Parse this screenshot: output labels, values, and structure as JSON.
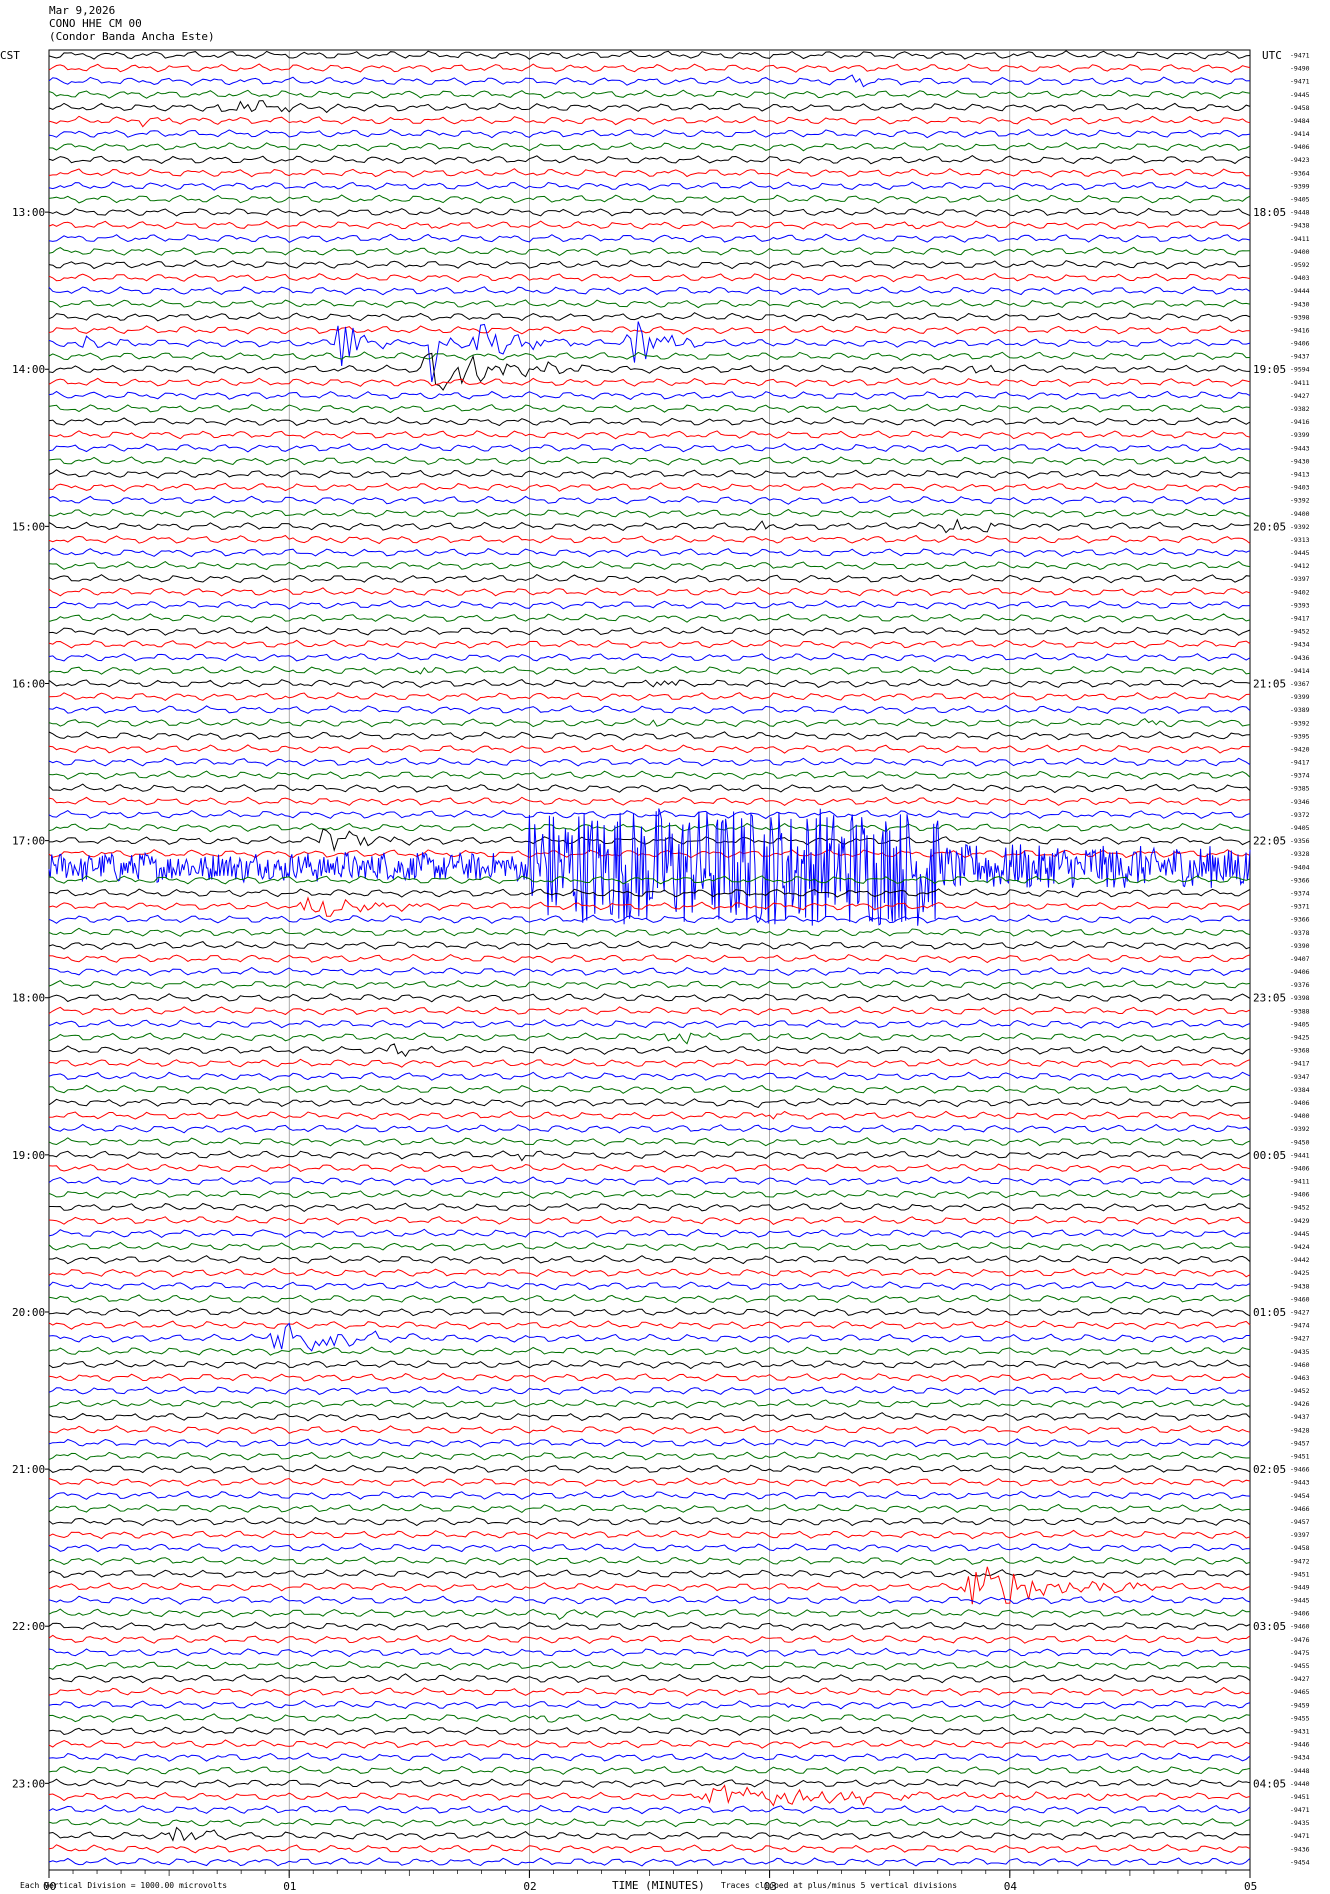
{
  "header": {
    "date": "Mar 9,2026",
    "station": "CONO HHE CM 00",
    "site": "(Condor Banda Ancha Este)"
  },
  "left_tz": "CST",
  "right_tz": "UTC",
  "footer": {
    "division_note": "Each Vertical Division = 1000.00 microvolts",
    "xlabel": "TIME (MINUTES)",
    "clip_note": "Traces clipped at plus/minus 5 vertical divisions"
  },
  "colors": {
    "cycle": [
      "#000000",
      "#ff0000",
      "#0000ff",
      "#007000"
    ]
  },
  "chart_data": {
    "type": "line",
    "title": "CONO HHE CM 00",
    "xlabel": "TIME (MINUTES)",
    "ylabel": "",
    "xlim": [
      0,
      5
    ],
    "x_ticks": [
      "00",
      "01",
      "02",
      "03",
      "04",
      "05"
    ],
    "grid": true,
    "left_hour_labels": [
      {
        "trace": 12,
        "label": "13:00"
      },
      {
        "trace": 24,
        "label": "14:00"
      },
      {
        "trace": 36,
        "label": "15:00"
      },
      {
        "trace": 48,
        "label": "16:00"
      },
      {
        "trace": 60,
        "label": "17:00"
      },
      {
        "trace": 72,
        "label": "18:00"
      },
      {
        "trace": 84,
        "label": "19:00"
      },
      {
        "trace": 96,
        "label": "20:00"
      },
      {
        "trace": 108,
        "label": "21:00"
      },
      {
        "trace": 120,
        "label": "22:00"
      },
      {
        "trace": 132,
        "label": "23:00"
      }
    ],
    "right_hour_labels": [
      {
        "trace": 12,
        "label": "18:05"
      },
      {
        "trace": 24,
        "label": "19:05"
      },
      {
        "trace": 36,
        "label": "20:05"
      },
      {
        "trace": 48,
        "label": "21:05"
      },
      {
        "trace": 60,
        "label": "22:05"
      },
      {
        "trace": 72,
        "label": "23:05"
      },
      {
        "trace": 84,
        "label": "00:05"
      },
      {
        "trace": 96,
        "label": "01:05"
      },
      {
        "trace": 108,
        "label": "02:05"
      },
      {
        "trace": 120,
        "label": "03:05"
      },
      {
        "trace": 132,
        "label": "04:05"
      }
    ],
    "trace_offsets": [
      "-9471",
      "-9490",
      "-9471",
      "-9445",
      "-9458",
      "-9484",
      "-9414",
      "-9406",
      "-9423",
      "-9364",
      "-9399",
      "-9405",
      "-9448",
      "-9438",
      "-9411",
      "-9400",
      "-9592",
      "-9403",
      "-9444",
      "-9430",
      "-9398",
      "-9416",
      "-9406",
      "-9437",
      "-9594",
      "-9411",
      "-9427",
      "-9382",
      "-9416",
      "-9399",
      "-9443",
      "-9430",
      "-9413",
      "-9403",
      "-9392",
      "-9400",
      "-9392",
      "-9313",
      "-9445",
      "-9412",
      "-9397",
      "-9402",
      "-9393",
      "-9417",
      "-9452",
      "-9434",
      "-9436",
      "-9414",
      "-9367",
      "-9399",
      "-9389",
      "-9392",
      "-9395",
      "-9420",
      "-9417",
      "-9374",
      "-9385",
      "-9346",
      "-9372",
      "-9405",
      "-9356",
      "-9328",
      "-9404",
      "-9366",
      "-9374",
      "-9371",
      "-9366",
      "-9378",
      "-9390",
      "-9407",
      "-9406",
      "-9376",
      "-9398",
      "-9388",
      "-9405",
      "-9425",
      "-9368",
      "-9417",
      "-9347",
      "-9384",
      "-9406",
      "-9400",
      "-9392",
      "-9450",
      "-9441",
      "-9406",
      "-9411",
      "-9406",
      "-9452",
      "-9429",
      "-9445",
      "-9424",
      "-9442",
      "-9425",
      "-9438",
      "-9460",
      "-9427",
      "-9474",
      "-9427",
      "-9435",
      "-9460",
      "-9463",
      "-9452",
      "-9426",
      "-9437",
      "-9428",
      "-9457",
      "-9451",
      "-9466",
      "-9443",
      "-9454",
      "-9466",
      "-9457",
      "-9397",
      "-9458",
      "-9472",
      "-9451",
      "-9449",
      "-9445",
      "-9406",
      "-9460",
      "-9476",
      "-9475",
      "-9455",
      "-9427",
      "-9465",
      "-9459",
      "-9455",
      "-9431",
      "-9446",
      "-9434",
      "-9448",
      "-9440",
      "-9451",
      "-9471",
      "-9435",
      "-9471",
      "-9436",
      "-9454"
    ],
    "events": [
      {
        "trace": 2,
        "x0": 3.32,
        "x1": 3.55,
        "amp": 0.9,
        "kind": "burst"
      },
      {
        "trace": 4,
        "x0": 0.7,
        "x1": 1.3,
        "amp": 1.2,
        "kind": "burst"
      },
      {
        "trace": 5,
        "x0": 0.35,
        "x1": 0.6,
        "amp": 0.5,
        "kind": "burst"
      },
      {
        "trace": 13,
        "x0": 1.56,
        "x1": 1.7,
        "amp": 0.7,
        "kind": "burst"
      },
      {
        "trace": 13,
        "x0": 3.58,
        "x1": 3.7,
        "amp": 0.4,
        "kind": "burst"
      },
      {
        "trace": 21,
        "x0": 0.45,
        "x1": 0.56,
        "amp": 0.4,
        "kind": "burst"
      },
      {
        "trace": 22,
        "x0": 0.12,
        "x1": 0.38,
        "amp": 0.8,
        "kind": "burst"
      },
      {
        "trace": 22,
        "x0": 1.2,
        "x1": 1.42,
        "amp": 5,
        "kind": "burst"
      },
      {
        "trace": 22,
        "x0": 1.58,
        "x1": 1.72,
        "amp": 5,
        "kind": "burst"
      },
      {
        "trace": 22,
        "x0": 1.72,
        "x1": 2.2,
        "amp": 2.8,
        "kind": "burst"
      },
      {
        "trace": 22,
        "x0": 2.38,
        "x1": 2.7,
        "amp": 4,
        "kind": "burst"
      },
      {
        "trace": 24,
        "x0": 1.55,
        "x1": 2.25,
        "amp": 3,
        "kind": "burst"
      },
      {
        "trace": 24,
        "x0": 3.78,
        "x1": 4.1,
        "amp": 1.0,
        "kind": "burst"
      },
      {
        "trace": 26,
        "x0": 0.12,
        "x1": 0.22,
        "amp": 0.4,
        "kind": "burst"
      },
      {
        "trace": 36,
        "x0": 2.92,
        "x1": 3.15,
        "amp": 0.6,
        "kind": "burst"
      },
      {
        "trace": 36,
        "x0": 3.7,
        "x1": 4.2,
        "amp": 0.8,
        "kind": "burst"
      },
      {
        "trace": 37,
        "x0": 0.95,
        "x1": 1.2,
        "amp": 0.6,
        "kind": "burst"
      },
      {
        "trace": 37,
        "x0": 3.1,
        "x1": 3.4,
        "amp": 0.5,
        "kind": "burst"
      },
      {
        "trace": 47,
        "x0": 1.5,
        "x1": 1.8,
        "amp": 0.4,
        "kind": "burst"
      },
      {
        "trace": 48,
        "x0": 2.5,
        "x1": 2.7,
        "amp": 0.7,
        "kind": "burst"
      },
      {
        "trace": 51,
        "x0": 2.5,
        "x1": 2.62,
        "amp": 0.5,
        "kind": "burst"
      },
      {
        "trace": 51,
        "x0": 4.55,
        "x1": 4.9,
        "amp": 0.4,
        "kind": "burst"
      },
      {
        "trace": 60,
        "x0": 1.12,
        "x1": 1.55,
        "amp": 1.5,
        "kind": "burst"
      },
      {
        "trace": 62,
        "x0": 0.0,
        "x1": 2.0,
        "amp": 1.2,
        "kind": "noise"
      },
      {
        "trace": 62,
        "x0": 2.0,
        "x1": 3.7,
        "amp": 5,
        "kind": "clip"
      },
      {
        "trace": 62,
        "x0": 3.7,
        "x1": 5.0,
        "amp": 2,
        "kind": "noise"
      },
      {
        "trace": 65,
        "x0": 1.05,
        "x1": 1.55,
        "amp": 1.8,
        "kind": "burst"
      },
      {
        "trace": 75,
        "x0": 2.55,
        "x1": 3.2,
        "amp": 0.6,
        "kind": "burst"
      },
      {
        "trace": 76,
        "x0": 1.4,
        "x1": 1.7,
        "amp": 0.7,
        "kind": "burst"
      },
      {
        "trace": 80,
        "x0": 2.9,
        "x1": 3.1,
        "amp": 0.4,
        "kind": "burst"
      },
      {
        "trace": 81,
        "x0": 2.95,
        "x1": 3.15,
        "amp": 0.5,
        "kind": "burst"
      },
      {
        "trace": 84,
        "x0": 1.95,
        "x1": 2.05,
        "amp": 1.2,
        "kind": "burst"
      },
      {
        "trace": 90,
        "x0": 0.9,
        "x1": 1.0,
        "amp": 0.4,
        "kind": "burst"
      },
      {
        "trace": 98,
        "x0": 0.92,
        "x1": 1.6,
        "amp": 2.2,
        "kind": "burst"
      },
      {
        "trace": 117,
        "x0": 3.8,
        "x1": 4.7,
        "amp": 2.5,
        "kind": "burst"
      },
      {
        "trace": 119,
        "x0": 2.1,
        "x1": 2.3,
        "amp": 0.5,
        "kind": "burst"
      },
      {
        "trace": 124,
        "x0": 1.37,
        "x1": 1.55,
        "amp": 0.6,
        "kind": "burst"
      },
      {
        "trace": 125,
        "x0": 0.5,
        "x1": 0.7,
        "amp": 0.5,
        "kind": "burst"
      },
      {
        "trace": 126,
        "x0": 1.35,
        "x1": 1.5,
        "amp": 0.3,
        "kind": "burst"
      },
      {
        "trace": 126,
        "x0": 3.0,
        "x1": 3.2,
        "amp": 0.4,
        "kind": "burst"
      },
      {
        "trace": 127,
        "x0": 2.02,
        "x1": 2.3,
        "amp": 0.5,
        "kind": "burst"
      },
      {
        "trace": 133,
        "x0": 2.7,
        "x1": 4.5,
        "amp": 1.2,
        "kind": "burst"
      },
      {
        "trace": 136,
        "x0": 0.5,
        "x1": 0.9,
        "amp": 1.0,
        "kind": "burst"
      }
    ]
  }
}
